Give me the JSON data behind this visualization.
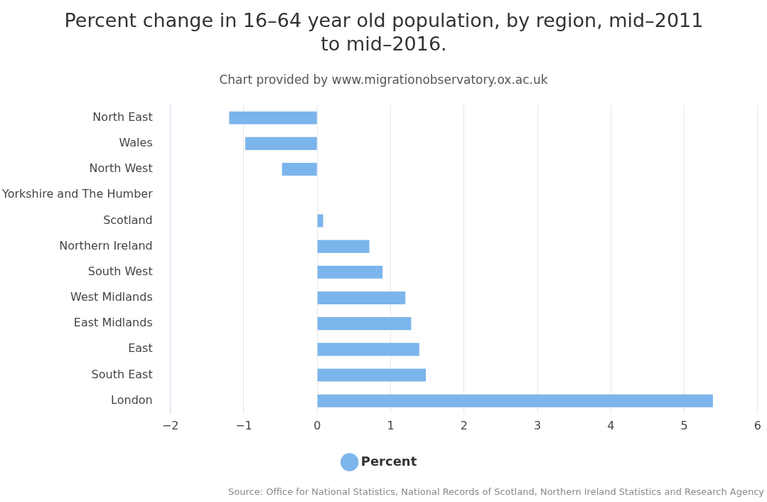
{
  "chart_data": {
    "type": "bar",
    "orientation": "horizontal",
    "title": "Percent change in 16–64 year old population, by region, mid–2011 to mid–2016.",
    "subtitle": "Chart provided by www.migrationobservatory.ox.ac.uk",
    "categories": [
      "North East",
      "Wales",
      "North West",
      "Yorkshire and The Humber",
      "Scotland",
      "Northern Ireland",
      "South West",
      "West Midlands",
      "East Midlands",
      "East",
      "South East",
      "London"
    ],
    "series": [
      {
        "name": "Percent",
        "color": "#7cb5ec",
        "values": [
          -1.2,
          -0.98,
          -0.48,
          0,
          0.08,
          0.71,
          0.89,
          1.2,
          1.28,
          1.39,
          1.48,
          5.39
        ]
      }
    ],
    "xlim": [
      -2,
      6
    ],
    "xticks": [
      -2,
      -1,
      0,
      1,
      2,
      3,
      4,
      5,
      6
    ],
    "grid": "x",
    "legend": "bottom",
    "annotations": [
      "Source: Office for National Statistics, National Records of Scotland, Northern Ireland Statistics and Research Agency"
    ]
  }
}
